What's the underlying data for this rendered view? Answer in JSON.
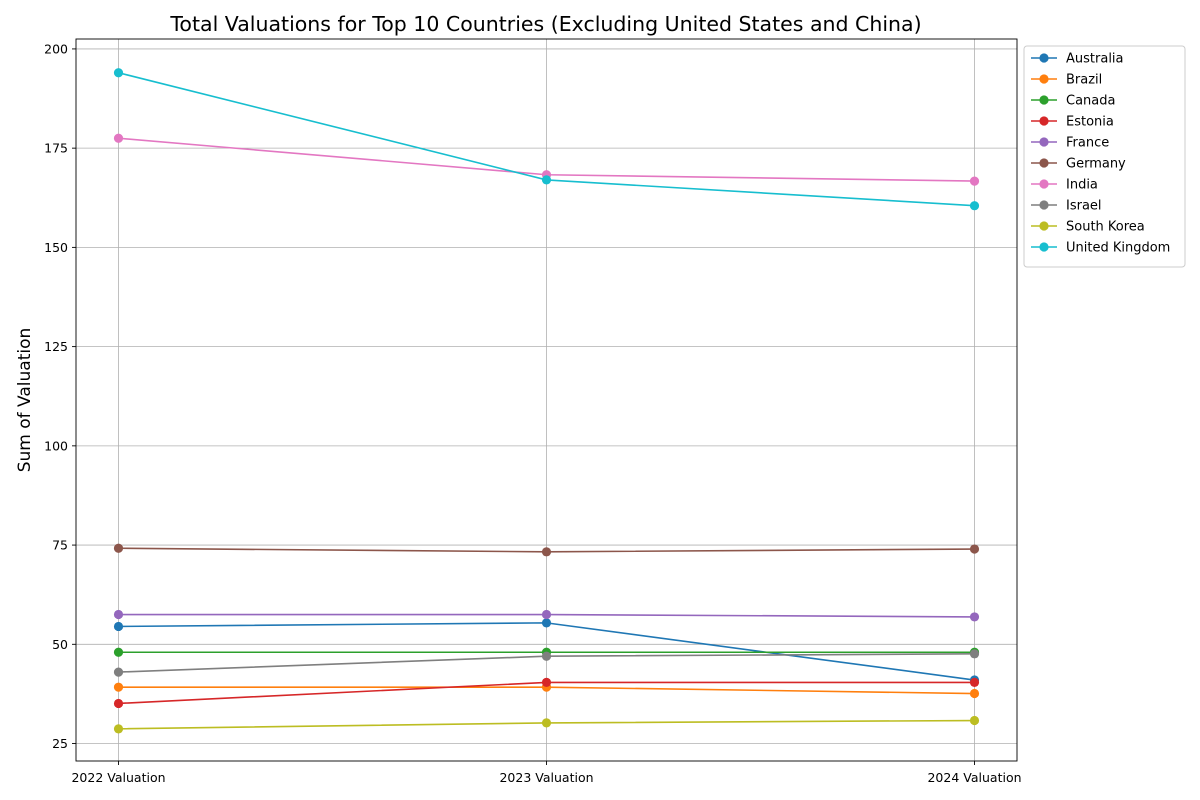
{
  "chart_data": {
    "type": "line",
    "title": "Total Valuations for Top 10 Countries (Excluding United States and China)",
    "xlabel": "",
    "ylabel": "Sum of Valuation",
    "categories": [
      "2022 Valuation",
      "2023 Valuation",
      "2024 Valuation"
    ],
    "ylim": [
      20.6,
      202.5
    ],
    "yticks": [
      25,
      50,
      75,
      100,
      125,
      150,
      175,
      200
    ],
    "grid": true,
    "legend_position": "outside-top-right",
    "series": [
      {
        "name": "Australia",
        "color": "#1f77b4",
        "values": [
          54.5,
          55.4,
          41.0
        ]
      },
      {
        "name": "Brazil",
        "color": "#ff7f0e",
        "values": [
          39.2,
          39.2,
          37.6
        ]
      },
      {
        "name": "Canada",
        "color": "#2ca02c",
        "values": [
          48.0,
          48.0,
          48.0
        ]
      },
      {
        "name": "Estonia",
        "color": "#d62728",
        "values": [
          35.1,
          40.4,
          40.4
        ]
      },
      {
        "name": "France",
        "color": "#9467bd",
        "values": [
          57.5,
          57.5,
          56.9
        ]
      },
      {
        "name": "Germany",
        "color": "#8c564b",
        "values": [
          74.2,
          73.3,
          74.0
        ]
      },
      {
        "name": "India",
        "color": "#e377c2",
        "values": [
          177.5,
          168.3,
          166.7
        ]
      },
      {
        "name": "Israel",
        "color": "#7f7f7f",
        "values": [
          43.0,
          47.0,
          47.6
        ]
      },
      {
        "name": "South Korea",
        "color": "#bcbd22",
        "values": [
          28.7,
          30.2,
          30.8
        ]
      },
      {
        "name": "United Kingdom",
        "color": "#17becf",
        "values": [
          194.0,
          167.0,
          160.5
        ]
      }
    ]
  }
}
